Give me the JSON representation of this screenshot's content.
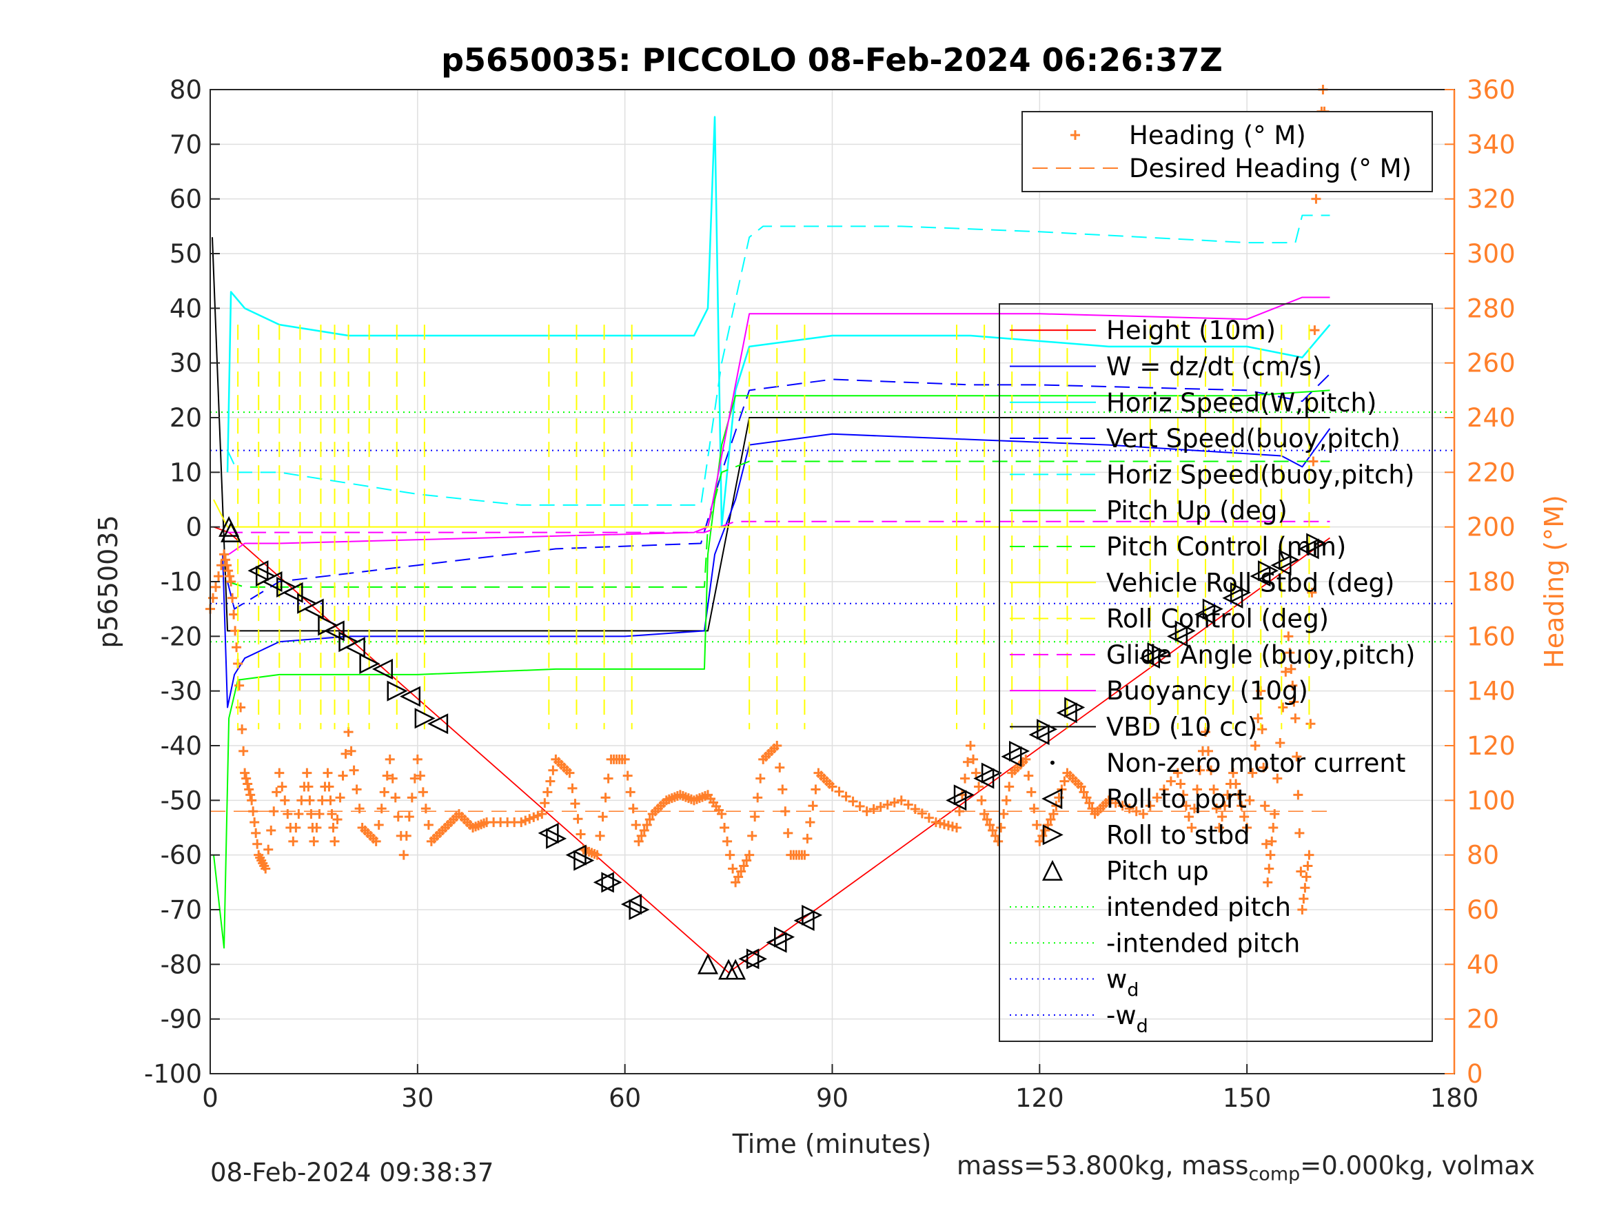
{
  "chart_data": {
    "type": "line",
    "title": "p5650035: PICCOLO 08-Feb-2024 06:26:37Z",
    "xlabel": "Time (minutes)",
    "ylabel_left": "p5650035",
    "ylabel_right": "Heading (°M)",
    "xlim": [
      0,
      180
    ],
    "ylim_left": [
      -100,
      80
    ],
    "ylim_right": [
      0,
      360
    ],
    "xticks": [
      0,
      30,
      60,
      90,
      120,
      150,
      180
    ],
    "yticks_left": [
      -100,
      -90,
      -80,
      -70,
      -60,
      -50,
      -40,
      -30,
      -20,
      -10,
      0,
      10,
      20,
      30,
      40,
      50,
      60,
      70,
      80
    ],
    "yticks_right": [
      0,
      20,
      40,
      60,
      80,
      100,
      120,
      140,
      160,
      180,
      200,
      220,
      240,
      260,
      280,
      300,
      320,
      340,
      360
    ],
    "grid": true,
    "colors": {
      "height": "#ff0000",
      "w": "#0000ff",
      "horiz_w": "#00ffff",
      "pitch": "#00ff00",
      "roll": "#ffff00",
      "glide": "#ff00ff",
      "buoyancy": "#ff00ff",
      "vbd": "#000000",
      "heading": "#ff7f2a",
      "axis_right": "#ff7f2a"
    },
    "heading_legend": [
      {
        "label": "Heading (° M)",
        "style": "plus",
        "color": "#ff7f2a"
      },
      {
        "label": "Desired Heading (° M)",
        "style": "dash",
        "color": "#ff7f2a"
      }
    ],
    "legend": [
      {
        "label": "Height (10m)",
        "style": "solid",
        "color": "#ff0000"
      },
      {
        "label": "W = dz/dt (cm/s)",
        "style": "solid",
        "color": "#0000ff"
      },
      {
        "label": "Horiz Speed(W,pitch)",
        "style": "solid",
        "color": "#00ffff"
      },
      {
        "label": "Vert Speed(buoy,pitch)",
        "style": "dash",
        "color": "#0000ff"
      },
      {
        "label": "Horiz Speed(buoy,pitch)",
        "style": "dash",
        "color": "#00ffff"
      },
      {
        "label": "Pitch Up (deg)",
        "style": "solid",
        "color": "#00ff00"
      },
      {
        "label": "Pitch Control (mm)",
        "style": "dash",
        "color": "#00ff00"
      },
      {
        "label": "Vehicle Roll Stbd (deg)",
        "style": "solid",
        "color": "#ffff00"
      },
      {
        "label": "Roll Control (deg)",
        "style": "dash",
        "color": "#ffff00"
      },
      {
        "label": "Glide Angle (buoy,pitch)",
        "style": "dash",
        "color": "#ff00ff"
      },
      {
        "label": "Buoyancy (10g)",
        "style": "solid",
        "color": "#ff00ff"
      },
      {
        "label": "VBD (10 cc)",
        "style": "solid",
        "color": "#000000"
      },
      {
        "label": "Non-zero motor current",
        "style": "dot",
        "color": "#000000"
      },
      {
        "label": "Roll to port",
        "style": "tri-left",
        "color": "#000000"
      },
      {
        "label": "Roll to stbd",
        "style": "tri-right",
        "color": "#000000"
      },
      {
        "label": "Pitch up",
        "style": "tri-up",
        "color": "#000000"
      },
      {
        "label": "intended pitch",
        "style": "dotted",
        "color": "#00ff00"
      },
      {
        "label": "-intended pitch",
        "style": "dotted",
        "color": "#00ff00"
      },
      {
        "label": "w",
        "sub": "d",
        "style": "dotted",
        "color": "#0000ff"
      },
      {
        "label": "-w",
        "sub": "d",
        "style": "dotted",
        "color": "#0000ff"
      }
    ],
    "series": [
      {
        "name": "Height (10m)",
        "x": [
          0.5,
          2.7,
          75,
          162
        ],
        "y": [
          0,
          -1,
          -81.5,
          -2
        ]
      },
      {
        "name": "VBD (10 cc)",
        "x": [
          0.3,
          1,
          2.5,
          2.6,
          72,
          78,
          160,
          162
        ],
        "y": [
          53,
          30,
          -19,
          -19,
          -19,
          20,
          20,
          20
        ]
      },
      {
        "name": "W = dz/dt (cm/s)",
        "x": [
          1.8,
          2.5,
          3.5,
          5,
          10,
          20,
          40,
          60,
          71.5,
          73,
          76,
          78,
          90,
          110,
          130,
          155,
          158,
          162
        ],
        "y": [
          -5,
          -33,
          -27,
          -24,
          -21,
          -20,
          -20,
          -20,
          -19,
          -5,
          5,
          15,
          17,
          16,
          15,
          13,
          11,
          18
        ]
      },
      {
        "name": "Vert Speed(buoy,pitch)",
        "x": [
          2.5,
          3.5,
          10,
          30,
          50,
          71,
          74,
          78,
          90,
          110,
          120,
          150,
          158,
          162
        ],
        "y": [
          -10,
          -15,
          -10,
          -7,
          -4,
          -3,
          10,
          25,
          27,
          26,
          26,
          25,
          23,
          28
        ]
      },
      {
        "name": "Horiz Speed(W,pitch)",
        "x": [
          2.5,
          3,
          5,
          10,
          20,
          30,
          50,
          70,
          72,
          73,
          74,
          76,
          78,
          90,
          110,
          130,
          150,
          158,
          162
        ],
        "y": [
          10,
          43,
          40,
          37,
          35,
          35,
          35,
          35,
          40,
          75,
          0,
          25,
          33,
          35,
          35,
          33,
          33,
          31,
          37
        ]
      },
      {
        "name": "Horiz Speed(buoy,pitch)",
        "x": [
          2.5,
          4,
          10,
          20,
          30,
          45,
          50,
          71,
          74,
          78,
          80,
          100,
          120,
          150,
          157,
          158,
          162
        ],
        "y": [
          14,
          10,
          10,
          8,
          6,
          4,
          4,
          4,
          30,
          53,
          55,
          55,
          54,
          52,
          52,
          57,
          57
        ]
      },
      {
        "name": "Pitch Up (deg)",
        "x": [
          0.5,
          2,
          2.7,
          4,
          10,
          30,
          50,
          71.5,
          72,
          74,
          76,
          90,
          130,
          150,
          162
        ],
        "y": [
          -60,
          -77,
          -35,
          -28,
          -27,
          -27,
          -26,
          -26,
          -5,
          15,
          24,
          24,
          24,
          24,
          25
        ]
      },
      {
        "name": "Pitch Control (mm)",
        "x": [
          2.5,
          5,
          30,
          50,
          71.5,
          72,
          74,
          78,
          90,
          130,
          150,
          162
        ],
        "y": [
          -10,
          -11,
          -11,
          -11,
          -11,
          0,
          10,
          12,
          12,
          12,
          12,
          12
        ]
      },
      {
        "name": "Glide Angle (buoy,pitch)",
        "x": [
          2.5,
          71.5,
          76,
          162
        ],
        "y": [
          -1,
          -1,
          1,
          1
        ]
      },
      {
        "name": "Buoyancy (10g)",
        "x": [
          2.7,
          5,
          10,
          40,
          70,
          72,
          78,
          100,
          120,
          150,
          158,
          162
        ],
        "y": [
          -5,
          -3,
          -3,
          -2,
          -1,
          0,
          39,
          39,
          39,
          38,
          42,
          42
        ]
      },
      {
        "name": "Vehicle Roll Stbd (deg)",
        "x": [
          0.5,
          2.5,
          5,
          70,
          72,
          76,
          78,
          162
        ],
        "y": [
          5,
          0,
          0,
          0,
          0,
          0,
          0,
          0
        ]
      },
      {
        "name": "Desired Heading (° M)",
        "x": [
          0,
          162
        ],
        "y": [
          96,
          96
        ]
      },
      {
        "name": "Heading (° M)",
        "x": [
          0,
          2,
          3,
          4,
          5,
          6,
          7,
          8,
          10,
          12,
          14,
          15,
          17,
          18,
          20,
          22,
          24,
          26,
          28,
          30,
          32,
          34,
          36,
          38,
          40,
          45,
          48,
          50,
          52,
          54,
          56,
          58,
          60,
          62,
          64,
          66,
          68,
          70,
          72,
          74,
          76,
          78,
          80,
          82,
          84,
          86,
          88,
          90,
          95,
          100,
          105,
          108,
          110,
          112,
          114,
          116,
          118,
          120,
          122,
          124,
          126,
          128,
          130,
          135,
          140,
          142,
          144,
          146,
          148,
          150,
          152,
          153,
          154,
          156,
          157,
          158,
          159,
          160,
          161,
          162
        ],
        "y": [
          170,
          190,
          180,
          150,
          110,
          100,
          80,
          75,
          110,
          85,
          110,
          85,
          110,
          85,
          125,
          90,
          85,
          115,
          80,
          115,
          85,
          90,
          95,
          90,
          92,
          92,
          95,
          115,
          110,
          82,
          80,
          115,
          115,
          85,
          95,
          100,
          102,
          100,
          102,
          95,
          70,
          80,
          115,
          120,
          80,
          80,
          110,
          105,
          96,
          100,
          92,
          90,
          120,
          95,
          85,
          110,
          115,
          85,
          95,
          110,
          105,
          95,
          100,
          95,
          110,
          90,
          125,
          90,
          110,
          90,
          140,
          70,
          95,
          160,
          130,
          60,
          80,
          320,
          360,
          320
        ]
      }
    ],
    "markers": {
      "roll_to_port": [
        [
          7,
          -8
        ],
        [
          9,
          -10
        ],
        [
          12,
          -12
        ],
        [
          15,
          -15
        ],
        [
          18,
          -19
        ],
        [
          21,
          -22
        ],
        [
          25,
          -26
        ],
        [
          29,
          -31
        ],
        [
          33,
          -36
        ],
        [
          49,
          -56
        ],
        [
          53,
          -60
        ],
        [
          57,
          -65
        ],
        [
          61,
          -69
        ],
        [
          78,
          -79
        ],
        [
          82,
          -76
        ],
        [
          86,
          -72
        ],
        [
          108,
          -50
        ],
        [
          112,
          -46
        ],
        [
          116,
          -42
        ],
        [
          120,
          -38
        ],
        [
          124,
          -34
        ],
        [
          136,
          -24
        ],
        [
          140,
          -20
        ],
        [
          144,
          -16
        ],
        [
          148,
          -13
        ],
        [
          152,
          -9
        ],
        [
          155,
          -7
        ],
        [
          159,
          -4
        ]
      ],
      "roll_to_stbd": [
        [
          8,
          -9
        ],
        [
          11,
          -11
        ],
        [
          14,
          -14
        ],
        [
          17,
          -18
        ],
        [
          20,
          -21
        ],
        [
          23,
          -25
        ],
        [
          27,
          -30
        ],
        [
          31,
          -35
        ],
        [
          50,
          -57
        ],
        [
          54,
          -61
        ],
        [
          58,
          -65
        ],
        [
          62,
          -70
        ],
        [
          79,
          -79
        ],
        [
          83,
          -75
        ],
        [
          87,
          -71
        ],
        [
          109,
          -49
        ],
        [
          113,
          -45
        ],
        [
          117,
          -41
        ],
        [
          121,
          -37
        ],
        [
          125,
          -33
        ],
        [
          137,
          -23
        ],
        [
          141,
          -19
        ],
        [
          145,
          -15
        ],
        [
          149,
          -12
        ],
        [
          153,
          -8
        ],
        [
          156,
          -6
        ],
        [
          160,
          -3
        ]
      ],
      "pitch_up": [
        [
          2.7,
          0
        ],
        [
          3,
          -1
        ],
        [
          72,
          -80
        ],
        [
          75,
          -81
        ],
        [
          76,
          -81
        ]
      ]
    },
    "reference_lines": {
      "intended_pitch": 21,
      "neg_intended_pitch": -21,
      "w_d": 14,
      "neg_w_d": -14
    }
  },
  "footer": {
    "date": "08-Feb-2024 09:38:37",
    "mass_text_a": "mass=53.800kg, mass",
    "mass_sub": "comp",
    "mass_text_b": "=0.000kg, volmax"
  }
}
